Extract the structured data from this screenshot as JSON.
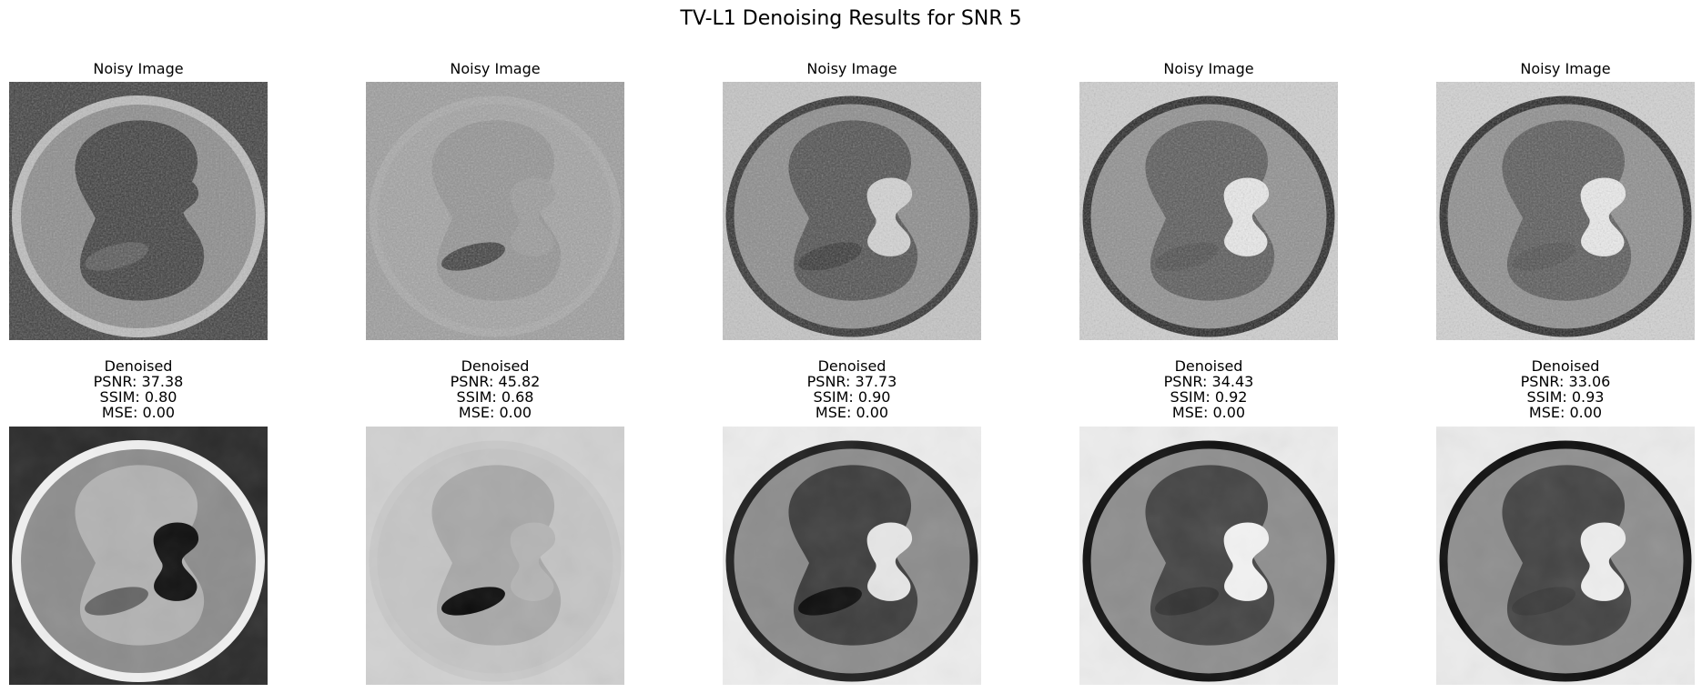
{
  "suptitle": "TV-L1 Denoising Results for SNR 5",
  "panels": [
    {
      "noisy_title": "Noisy Image",
      "denoised_title": "Denoised",
      "psnr": "PSNR: 37.38",
      "ssim": "SSIM: 0.80",
      "mse": "MSE: 0.00",
      "noisy": {
        "bg": "#3c3c3c",
        "ring": "#bdbdbd",
        "inner": "#8a8a8a",
        "blob": "#3a3a3a",
        "hole": "#3a3a3a",
        "ellipse": "#555555"
      },
      "denoised": {
        "bg": "#2a2a2a",
        "ring": "#f0f0f0",
        "inner": "#8c8c8c",
        "blob": "#b2b2b2",
        "hole": "#111111",
        "ellipse": "#666666"
      }
    },
    {
      "noisy_title": "Noisy Image",
      "denoised_title": "Denoised",
      "psnr": "PSNR: 45.82",
      "ssim": "SSIM: 0.68",
      "mse": "MSE: 0.00",
      "noisy": {
        "bg": "#9c9c9c",
        "ring": "#a8a8a8",
        "inner": "#a2a2a2",
        "blob": "#929292",
        "hole": "#9a9a9a",
        "ellipse": "#3c3c3c"
      },
      "denoised": {
        "bg": "#d0d0d0",
        "ring": "#c8c8c8",
        "inner": "#c4c4c4",
        "blob": "#a8a8a8",
        "hole": "#b4b4b4",
        "ellipse": "#0c0c0c"
      }
    },
    {
      "noisy_title": "Noisy Image",
      "denoised_title": "Denoised",
      "psnr": "PSNR: 37.73",
      "ssim": "SSIM: 0.90",
      "mse": "MSE: 0.00",
      "noisy": {
        "bg": "#c4c4c4",
        "ring": "#2c2c2c",
        "inner": "#8a8a8a",
        "blob": "#4c4c4c",
        "hole": "#d4d4d4",
        "ellipse": "#333333"
      },
      "denoised": {
        "bg": "#ececec",
        "ring": "#1e1e1e",
        "inner": "#8c8c8c",
        "blob": "#3e3e3e",
        "hole": "#e6e6e6",
        "ellipse": "#0e0e0e"
      }
    },
    {
      "noisy_title": "Noisy Image",
      "denoised_title": "Denoised",
      "psnr": "PSNR: 34.43",
      "ssim": "SSIM: 0.92",
      "mse": "MSE: 0.00",
      "noisy": {
        "bg": "#cfcfcf",
        "ring": "#222222",
        "inner": "#8e8e8e",
        "blob": "#565656",
        "hole": "#ececec",
        "ellipse": "#4a4a4a"
      },
      "denoised": {
        "bg": "#ececec",
        "ring": "#111111",
        "inner": "#8e8e8e",
        "blob": "#444444",
        "hole": "#f2f2f2",
        "ellipse": "#333333"
      }
    },
    {
      "noisy_title": "Noisy Image",
      "denoised_title": "Denoised",
      "psnr": "PSNR: 33.06",
      "ssim": "SSIM: 0.93",
      "mse": "MSE: 0.00",
      "noisy": {
        "bg": "#d2d2d2",
        "ring": "#222222",
        "inner": "#8c8c8c",
        "blob": "#565656",
        "hole": "#ededed",
        "ellipse": "#4c4c4c"
      },
      "denoised": {
        "bg": "#ebebeb",
        "ring": "#0e0e0e",
        "inner": "#8e8e8e",
        "blob": "#444444",
        "hole": "#ededed",
        "ellipse": "#3a3a3a"
      }
    }
  ]
}
